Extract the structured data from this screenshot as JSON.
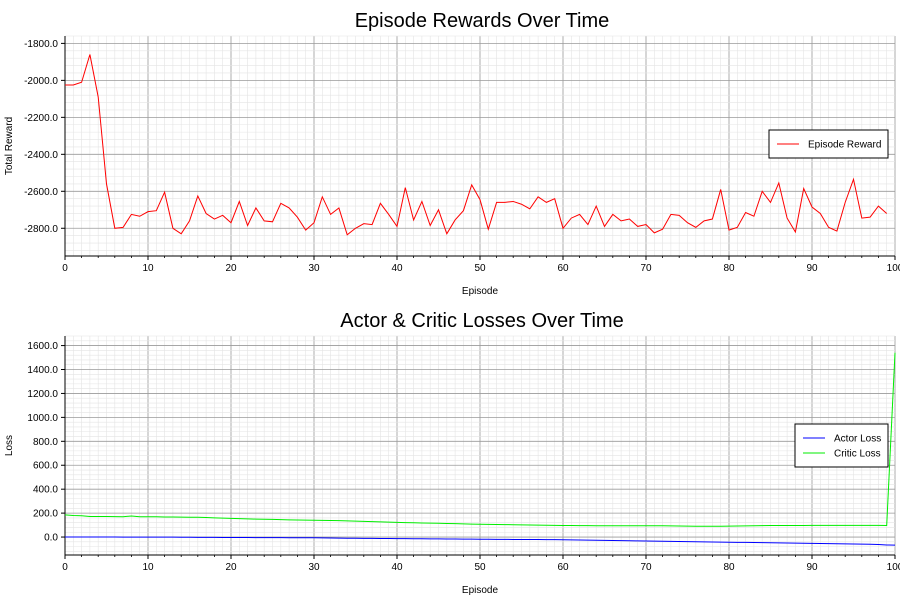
{
  "chart_data": [
    {
      "type": "line",
      "title": "Episode Rewards Over Time",
      "xlabel": "Episode",
      "ylabel": "Total Reward",
      "xlim": [
        0,
        100
      ],
      "ylim": [
        -2950,
        -1760
      ],
      "x_ticks": [
        0,
        10,
        20,
        30,
        40,
        50,
        60,
        70,
        80,
        90,
        100
      ],
      "y_ticks": [
        -2800,
        -2600,
        -2400,
        -2200,
        -2000,
        -1800
      ],
      "y_tick_labels": [
        "-2800.0",
        "-2600.0",
        "-2400.0",
        "-2200.0",
        "-2000.0",
        "-1800.0"
      ],
      "grid": true,
      "legend_position": "right",
      "series": [
        {
          "name": "Episode Reward",
          "color": "#ff0000",
          "values": [
            -2025,
            -2025,
            -2010,
            -1860,
            -2090,
            -2560,
            -2800,
            -2795,
            -2725,
            -2735,
            -2710,
            -2705,
            -2605,
            -2800,
            -2830,
            -2760,
            -2625,
            -2720,
            -2750,
            -2730,
            -2770,
            -2655,
            -2785,
            -2690,
            -2760,
            -2765,
            -2665,
            -2690,
            -2740,
            -2810,
            -2770,
            -2630,
            -2725,
            -2690,
            -2835,
            -2800,
            -2775,
            -2780,
            -2665,
            -2725,
            -2790,
            -2580,
            -2755,
            -2655,
            -2785,
            -2700,
            -2830,
            -2755,
            -2705,
            -2565,
            -2645,
            -2805,
            -2660,
            -2660,
            -2655,
            -2670,
            -2695,
            -2630,
            -2660,
            -2640,
            -2800,
            -2745,
            -2725,
            -2780,
            -2680,
            -2790,
            -2725,
            -2760,
            -2750,
            -2790,
            -2780,
            -2825,
            -2805,
            -2725,
            -2730,
            -2770,
            -2795,
            -2760,
            -2750,
            -2590,
            -2810,
            -2795,
            -2715,
            -2735,
            -2600,
            -2660,
            -2555,
            -2745,
            -2820,
            -2585,
            -2685,
            -2720,
            -2795,
            -2815,
            -2660,
            -2535,
            -2745,
            -2740,
            -2680,
            -2720
          ]
        }
      ]
    },
    {
      "type": "line",
      "title": "Actor & Critic Losses Over Time",
      "xlabel": "Episode",
      "ylabel": "Loss",
      "xlim": [
        0,
        100
      ],
      "ylim": [
        -150,
        1680
      ],
      "x_ticks": [
        0,
        10,
        20,
        30,
        40,
        50,
        60,
        70,
        80,
        90,
        100
      ],
      "y_ticks": [
        0,
        200,
        400,
        600,
        800,
        1000,
        1200,
        1400,
        1600
      ],
      "y_tick_labels": [
        "0.0",
        "200.0",
        "400.0",
        "600.0",
        "800.0",
        "1000.0",
        "1200.0",
        "1400.0",
        "1600.0"
      ],
      "grid": true,
      "legend_position": "right",
      "series": [
        {
          "name": "Actor Loss",
          "color": "#0000ff",
          "values": [
            0,
            0,
            0,
            0,
            0,
            0,
            0,
            -1,
            -1,
            -1,
            -1,
            -1,
            -1,
            -1,
            -2,
            -2,
            -3,
            -3,
            -3,
            -4,
            -4,
            -4,
            -4,
            -5,
            -5,
            -5,
            -5,
            -6,
            -6,
            -6,
            -6,
            -7,
            -8,
            -9,
            -10,
            -10,
            -11,
            -11,
            -12,
            -12,
            -13,
            -13,
            -14,
            -14,
            -15,
            -15,
            -16,
            -16,
            -17,
            -17,
            -18,
            -18,
            -19,
            -19,
            -20,
            -20,
            -21,
            -21,
            -22,
            -22,
            -23,
            -24,
            -25,
            -26,
            -27,
            -28,
            -29,
            -30,
            -31,
            -32,
            -33,
            -34,
            -35,
            -36,
            -37,
            -38,
            -39,
            -40,
            -41,
            -42,
            -43,
            -44,
            -45,
            -46,
            -47,
            -48,
            -49,
            -50,
            -51,
            -52,
            -53,
            -54,
            -55,
            -56,
            -57,
            -58,
            -59,
            -60,
            -62,
            -66,
            -68
          ]
        },
        {
          "name": "Critic Loss",
          "color": "#00ee00",
          "values": [
            185,
            180,
            178,
            172,
            172,
            172,
            171,
            170,
            176,
            170,
            170,
            170,
            168,
            168,
            167,
            165,
            165,
            163,
            160,
            158,
            156,
            154,
            152,
            150,
            149,
            148,
            146,
            144,
            142,
            141,
            140,
            139,
            138,
            137,
            135,
            133,
            131,
            129,
            127,
            125,
            123,
            121,
            119,
            117,
            116,
            115,
            113,
            112,
            110,
            108,
            107,
            106,
            105,
            104,
            103,
            102,
            101,
            100,
            99,
            98,
            97,
            96,
            95,
            95,
            94,
            94,
            94,
            94,
            94,
            94,
            94,
            94,
            94,
            93,
            92,
            91,
            90,
            90,
            90,
            90,
            91,
            92,
            93,
            94,
            95,
            96,
            97,
            97,
            97,
            97,
            98,
            98,
            98,
            98,
            98,
            98,
            98,
            98,
            98,
            97,
            1540
          ]
        }
      ]
    }
  ]
}
